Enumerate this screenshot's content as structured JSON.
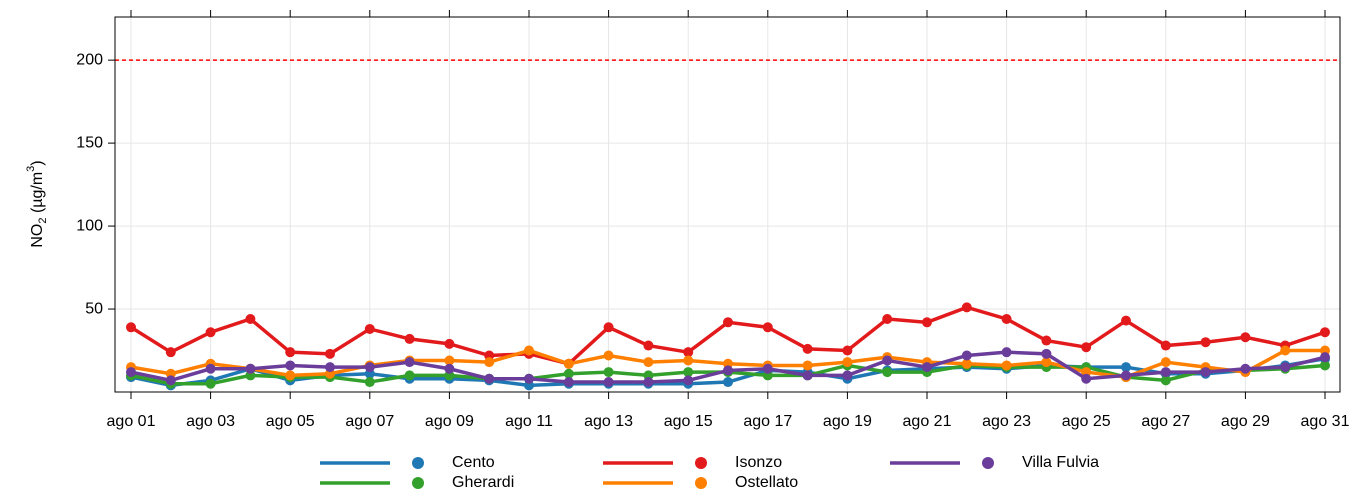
{
  "chart_data": {
    "type": "line",
    "y_label": [
      "NO",
      "2",
      " (µg/m",
      "3",
      ")"
    ],
    "categories": [
      "ago 01",
      null,
      "ago 03",
      null,
      "ago 05",
      null,
      "ago 07",
      null,
      "ago 09",
      null,
      "ago 11",
      null,
      "ago 13",
      null,
      "ago 15",
      null,
      "ago 17",
      null,
      "ago 19",
      null,
      "ago 21",
      null,
      "ago 23",
      null,
      "ago 25",
      null,
      "ago 27",
      null,
      "ago 29",
      null,
      "ago 31"
    ],
    "series": [
      {
        "name": "Cento",
        "color": "#1f78b4",
        "values": [
          9,
          4,
          7,
          14,
          7,
          10,
          11,
          8,
          8,
          7,
          4,
          5,
          5,
          5,
          5,
          6,
          13,
          12,
          8,
          13,
          14,
          15,
          14,
          16,
          15,
          15,
          11,
          11,
          13,
          16,
          20
        ]
      },
      {
        "name": "Gherardi",
        "color": "#33a02c",
        "values": [
          10,
          5,
          5,
          10,
          9,
          9,
          6,
          10,
          10,
          8,
          8,
          11,
          12,
          10,
          12,
          12,
          10,
          10,
          16,
          12,
          12,
          16,
          15,
          15,
          15,
          9,
          7,
          13,
          13,
          14,
          16
        ]
      },
      {
        "name": "Isonzo",
        "color": "#e31a1c",
        "values": [
          39,
          24,
          36,
          44,
          24,
          23,
          38,
          32,
          29,
          22,
          23,
          17,
          39,
          28,
          24,
          42,
          39,
          26,
          25,
          44,
          42,
          51,
          44,
          31,
          27,
          43,
          28,
          30,
          33,
          28,
          36
        ]
      },
      {
        "name": "Ostellato",
        "color": "#ff7f00",
        "values": [
          15,
          11,
          17,
          14,
          10,
          11,
          16,
          19,
          19,
          18,
          25,
          17,
          22,
          18,
          19,
          17,
          16,
          16,
          18,
          21,
          18,
          17,
          16,
          18,
          12,
          9,
          18,
          15,
          12,
          25,
          25
        ]
      },
      {
        "name": "Villa Fulvia",
        "color": "#6a3d9a",
        "values": [
          12,
          7,
          14,
          14,
          16,
          15,
          15,
          18,
          14,
          8,
          8,
          6,
          6,
          6,
          7,
          13,
          14,
          10,
          10,
          19,
          15,
          22,
          24,
          23,
          8,
          10,
          12,
          12,
          14,
          15,
          21
        ]
      }
    ],
    "ylim": [
      0,
      226
    ],
    "yticks": [
      50,
      100,
      150,
      200
    ],
    "grid": true,
    "reference_line": {
      "value": 200,
      "color": "#ff0000"
    },
    "legend": "bottom"
  }
}
